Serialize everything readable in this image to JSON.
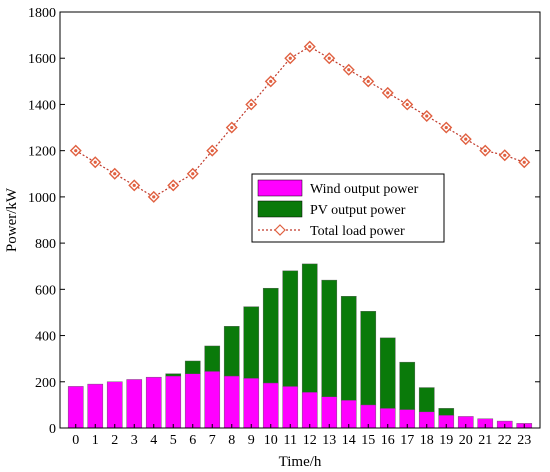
{
  "chart_data": {
    "type": "bar",
    "title": "",
    "xlabel": "Time/h",
    "ylabel": "Power/kW",
    "categories": [
      "0",
      "1",
      "2",
      "3",
      "4",
      "5",
      "6",
      "7",
      "8",
      "9",
      "10",
      "11",
      "12",
      "13",
      "14",
      "15",
      "16",
      "17",
      "18",
      "19",
      "20",
      "21",
      "22",
      "23"
    ],
    "ylim": [
      0,
      1800
    ],
    "yticks": [
      0,
      200,
      400,
      600,
      800,
      1000,
      1200,
      1400,
      1600,
      1800
    ],
    "grid": false,
    "legend_position": "center-right",
    "series": [
      {
        "name": "Wind output power",
        "kind": "stacked-bar",
        "color": "#ff00ff",
        "values": [
          180,
          190,
          200,
          210,
          220,
          225,
          235,
          245,
          225,
          215,
          195,
          180,
          155,
          135,
          120,
          100,
          85,
          80,
          70,
          55,
          50,
          40,
          30,
          20
        ]
      },
      {
        "name": "PV output power",
        "kind": "stacked-bar",
        "color": "#0a7a0a",
        "values": [
          0,
          0,
          0,
          0,
          0,
          10,
          55,
          110,
          215,
          310,
          410,
          500,
          555,
          505,
          450,
          405,
          305,
          205,
          105,
          30,
          0,
          0,
          0,
          0
        ]
      },
      {
        "name": "Total load power",
        "kind": "line",
        "color": "#c0392b",
        "marker_color": "#e06040",
        "values": [
          1200,
          1150,
          1100,
          1050,
          1000,
          1050,
          1100,
          1200,
          1300,
          1400,
          1500,
          1600,
          1650,
          1600,
          1550,
          1500,
          1450,
          1400,
          1350,
          1300,
          1250,
          1200,
          1180,
          1150
        ]
      }
    ]
  }
}
